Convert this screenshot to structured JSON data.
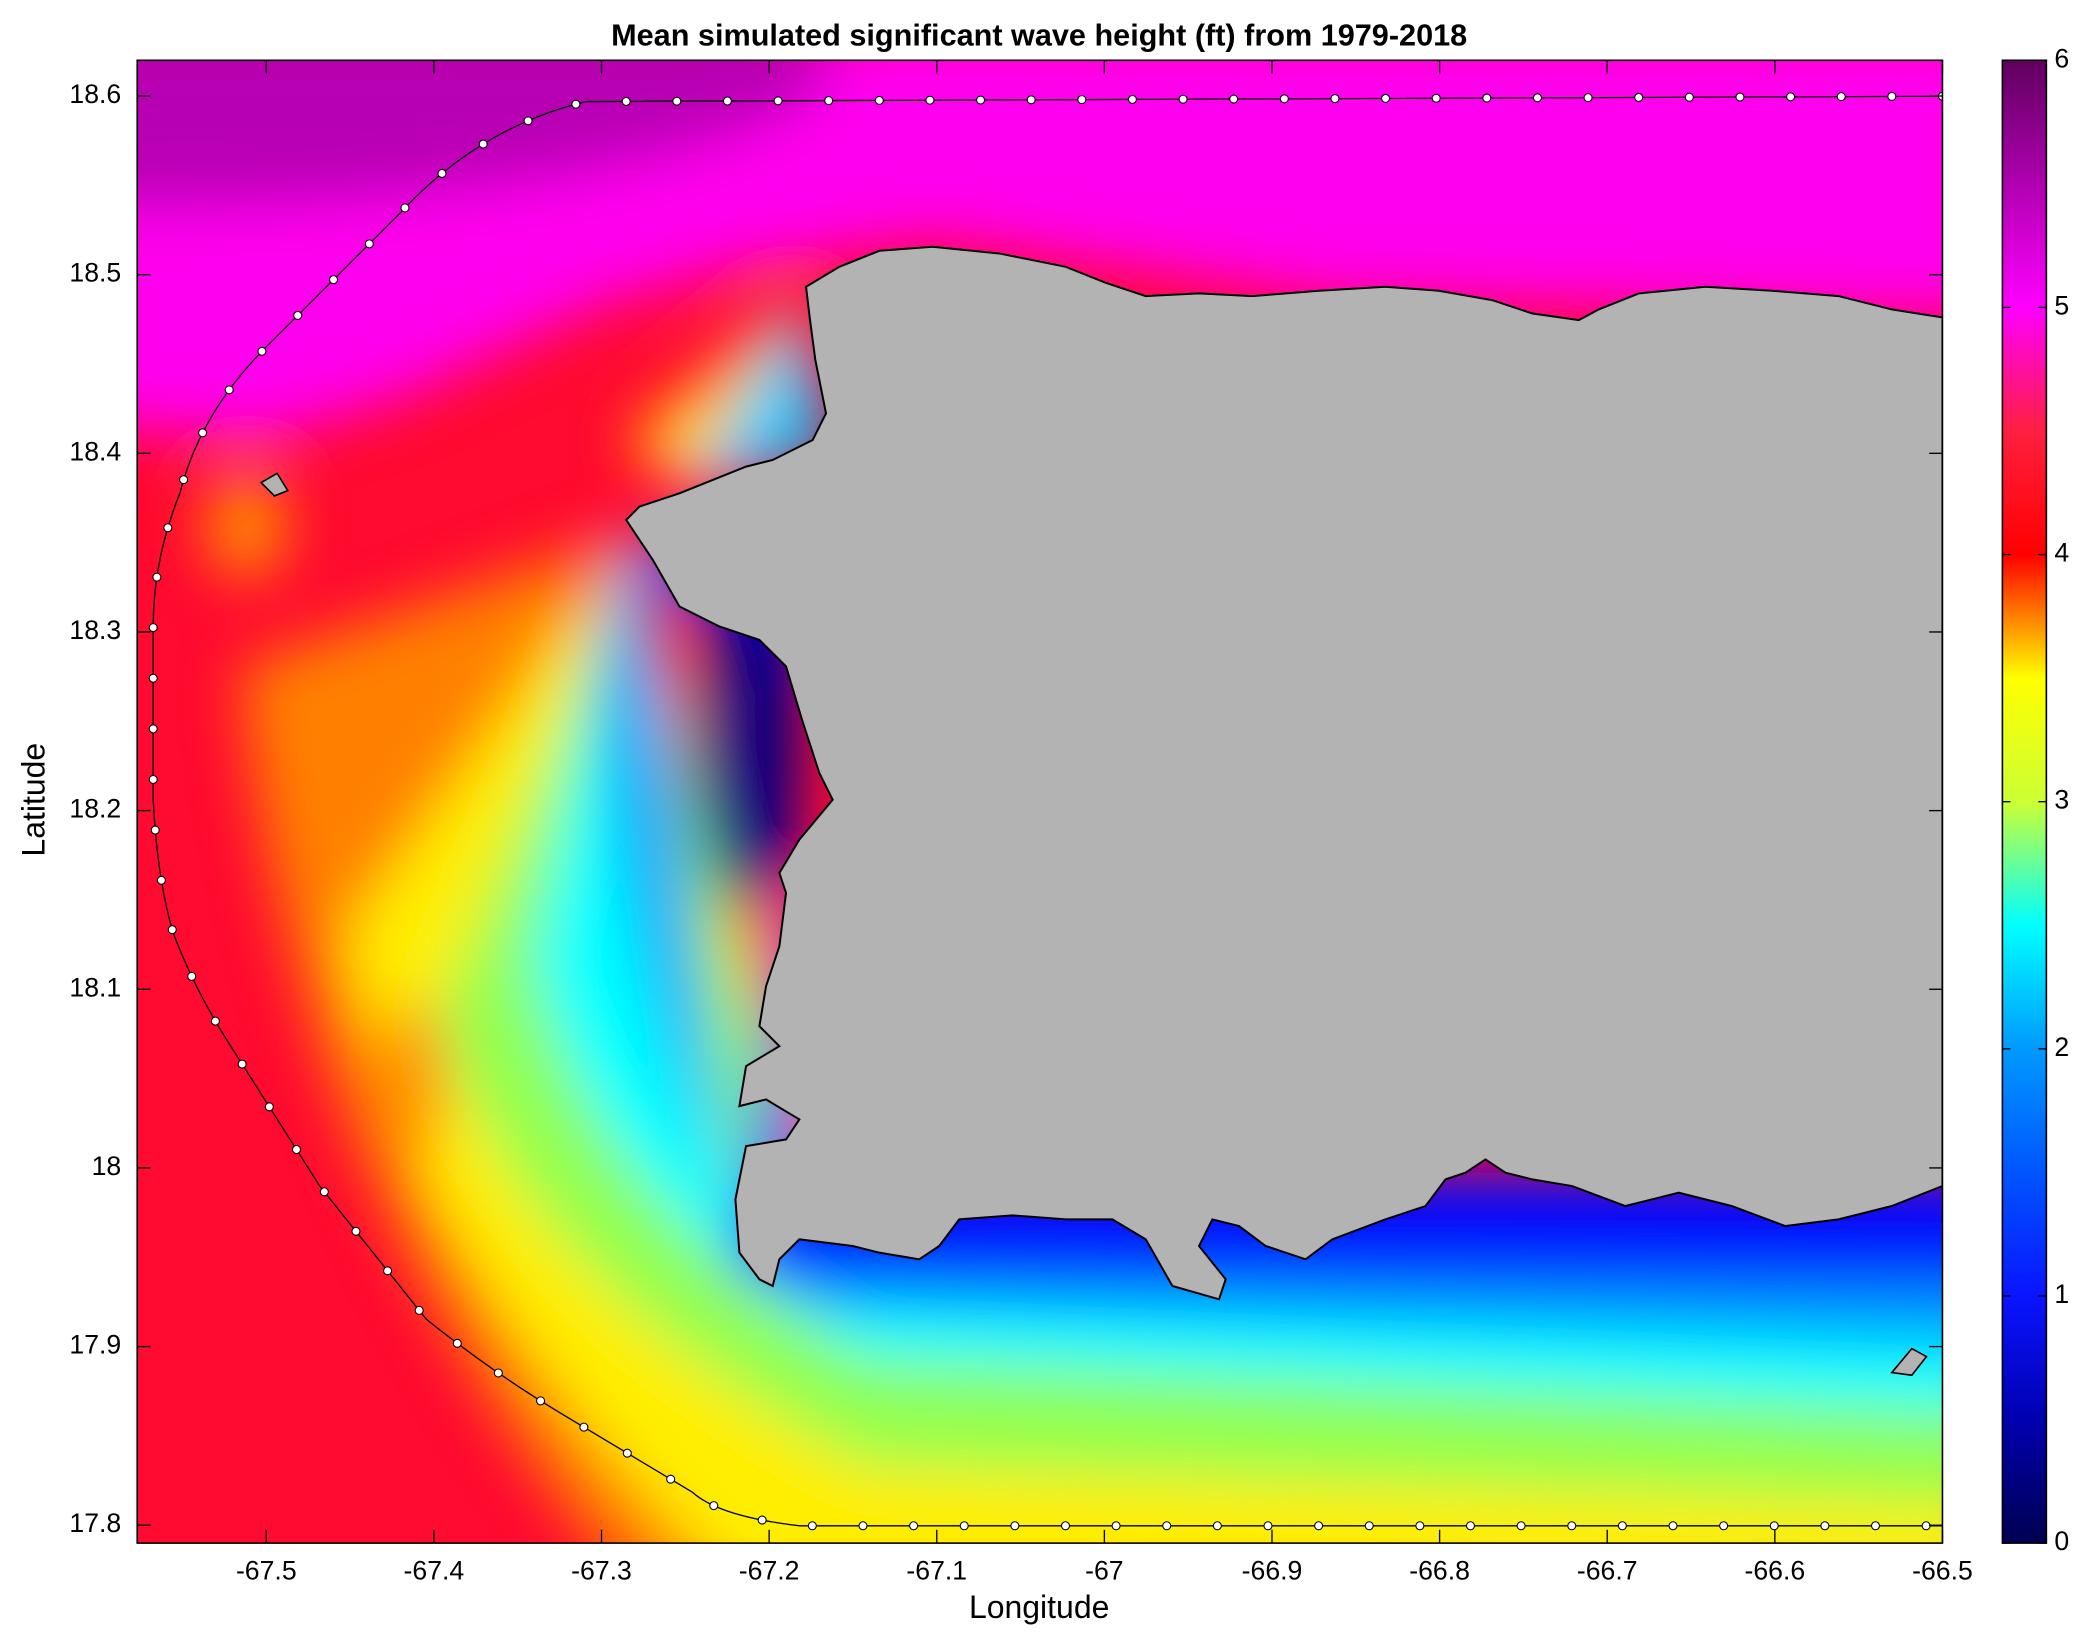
{
  "chart_data": {
    "type": "map",
    "title": "Mean simulated significant wave height (ft) from 1979-2018",
    "x_label": "Longitude",
    "y_label": "Latitude",
    "xlim": [
      -67.577,
      -66.5
    ],
    "ylim": [
      17.79,
      18.62
    ],
    "xticks": [
      -67.5,
      -67.4,
      -67.3,
      -67.2,
      -67.1,
      -67,
      -66.9,
      -66.8,
      -66.7,
      -66.6,
      -66.5
    ],
    "yticks": [
      17.8,
      17.9,
      18,
      18.1,
      18.2,
      18.3,
      18.4,
      18.5,
      18.6
    ],
    "colorbar": {
      "lim": [
        0,
        6
      ],
      "ticks": [
        0,
        1,
        2,
        3,
        4,
        5,
        6
      ],
      "colormap": [
        "#000050",
        "#0000b0",
        "#0a14ff",
        "#0055ff",
        "#0099ff",
        "#00ffff",
        "#ccff33",
        "#ffff00",
        "#ff0000",
        "#ff1f3f",
        "#ff00ff",
        "#b000b0",
        "#600060"
      ]
    }
  }
}
